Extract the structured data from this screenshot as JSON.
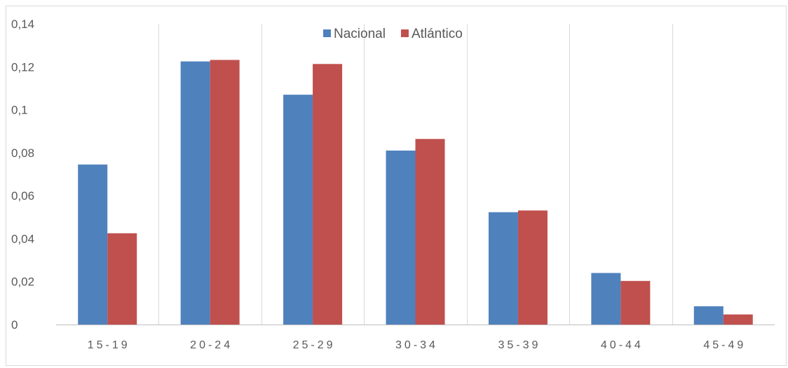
{
  "chart_data": {
    "type": "bar",
    "categories": [
      "15-19",
      "20-24",
      "25-29",
      "30-34",
      "35-39",
      "40-44",
      "45-49"
    ],
    "series": [
      {
        "name": "Nacional",
        "color": "#4f81bd",
        "values": [
          0.0745,
          0.1225,
          0.107,
          0.081,
          0.0523,
          0.024,
          0.0085
        ]
      },
      {
        "name": "Atlántico",
        "color": "#c0504d",
        "values": [
          0.0425,
          0.1232,
          0.1213,
          0.0864,
          0.0531,
          0.0203,
          0.0047
        ]
      }
    ],
    "yticks": [
      "0",
      "0,02",
      "0,04",
      "0,06",
      "0,08",
      "0,1",
      "0,12",
      "0,14"
    ],
    "ylim": [
      0,
      0.14
    ],
    "grid": {
      "vertical_category_separators": true,
      "horizontal": false
    },
    "legend": "top-center"
  }
}
